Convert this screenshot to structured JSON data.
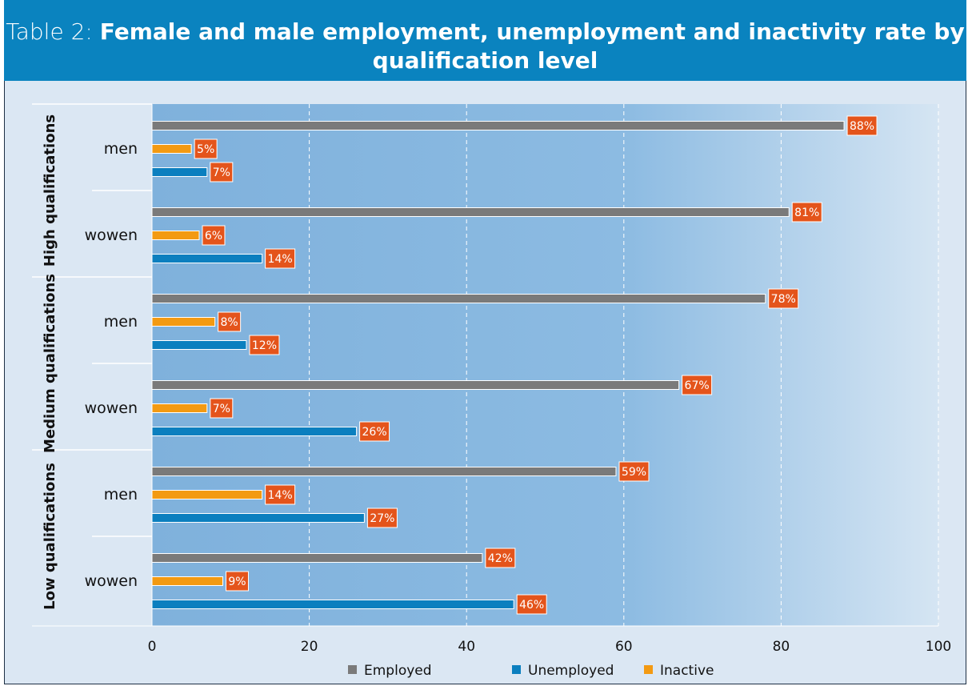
{
  "title": {
    "prefix": "Table 2: ",
    "main": "Female and male employment, unemployment and inactivity rate by qualification level"
  },
  "colors": {
    "employed": "#7a7a7a",
    "unemployed": "#0b7fbf",
    "inactive": "#f39a12",
    "label_bg": "#e4541b"
  },
  "chart_data": {
    "type": "bar",
    "orientation": "horizontal",
    "xlim": [
      0,
      100
    ],
    "x_ticks": [
      0,
      20,
      40,
      60,
      80,
      100
    ],
    "grid": true,
    "legend_position": "bottom",
    "series_order": [
      "Employed",
      "Inactive",
      "Unemployed"
    ],
    "groups": [
      {
        "label": "High qualifications",
        "rows": [
          {
            "label": "men",
            "Employed": 88,
            "Inactive": 5,
            "Unemployed": 7
          },
          {
            "label": "wowen",
            "Employed": 81,
            "Inactive": 6,
            "Unemployed": 14
          }
        ]
      },
      {
        "label": "Medium qualifications",
        "rows": [
          {
            "label": "men",
            "Employed": 78,
            "Inactive": 8,
            "Unemployed": 12
          },
          {
            "label": "wowen",
            "Employed": 67,
            "Inactive": 7,
            "Unemployed": 26
          }
        ]
      },
      {
        "label": "Low qualifications",
        "rows": [
          {
            "label": "men",
            "Employed": 59,
            "Inactive": 14,
            "Unemployed": 27
          },
          {
            "label": "wowen",
            "Employed": 42,
            "Inactive": 9,
            "Unemployed": 46
          }
        ]
      }
    ],
    "legend": [
      "Employed",
      "Unemployed",
      "Inactive"
    ]
  }
}
